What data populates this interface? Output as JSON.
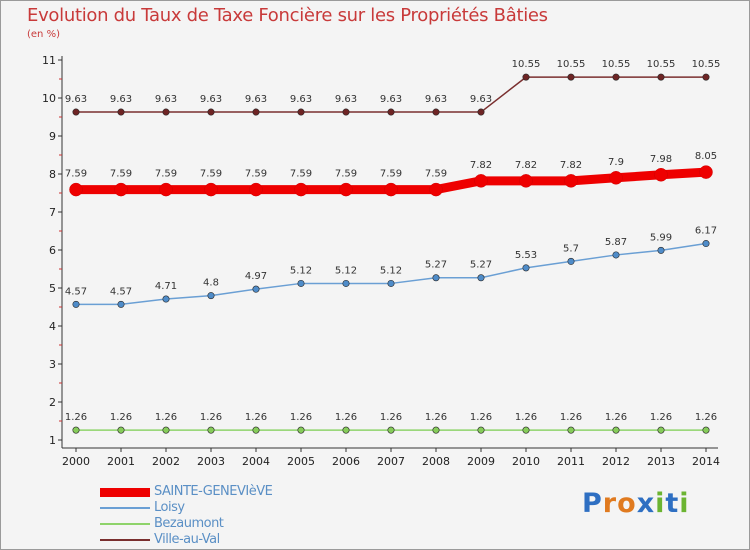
{
  "header": {
    "title": "Evolution du Taux de Taxe Foncière sur les Propriétés Bâties",
    "unit": "(en %)"
  },
  "brand": {
    "name": "Proxiti",
    "letters": [
      "P",
      "r",
      "o",
      "x",
      "i",
      "t",
      "i"
    ],
    "letter_colors": [
      "#2e6fc2",
      "#e07a1f",
      "#e07a1f",
      "#2e6fc2",
      "#6bb431",
      "#2e6fc2",
      "#6bb431"
    ]
  },
  "chart_data": {
    "type": "line",
    "title": "Evolution du Taux de Taxe Foncière sur les Propriétés Bâties",
    "ylabel": "(en %)",
    "xlabel": "",
    "ylim": [
      1,
      11
    ],
    "yticks": [
      1,
      2,
      3,
      4,
      5,
      6,
      7,
      8,
      9,
      10,
      11
    ],
    "grid": false,
    "legend_position": "bottom-left",
    "categories": [
      "2000",
      "2001",
      "2002",
      "2003",
      "2004",
      "2005",
      "2006",
      "2007",
      "2008",
      "2009",
      "2010",
      "2011",
      "2012",
      "2013",
      "2014"
    ],
    "series": [
      {
        "name": "SAINTE-GENEVIèVE",
        "color": "#ee0000",
        "style": "thick",
        "values": [
          7.59,
          7.59,
          7.59,
          7.59,
          7.59,
          7.59,
          7.59,
          7.59,
          7.59,
          7.82,
          7.82,
          7.82,
          7.9,
          7.98,
          8.05
        ],
        "labels": [
          "7.59",
          "7.59",
          "7.59",
          "7.59",
          "7.59",
          "7.59",
          "7.59",
          "7.59",
          "7.59",
          "7.82",
          "7.82",
          "7.82",
          "7.9",
          "7.98",
          "8.05"
        ]
      },
      {
        "name": "Loisy",
        "color": "#6a9fd4",
        "marker_color": "#4f8cc9",
        "style": "thin",
        "values": [
          4.57,
          4.57,
          4.71,
          4.8,
          4.97,
          5.12,
          5.12,
          5.12,
          5.27,
          5.27,
          5.53,
          5.7,
          5.87,
          5.99,
          6.17
        ],
        "labels": [
          "4.57",
          "4.57",
          "4.71",
          "4.8",
          "4.97",
          "5.12",
          "5.12",
          "5.12",
          "5.27",
          "5.27",
          "5.53",
          "5.7",
          "5.87",
          "5.99",
          "6.17"
        ]
      },
      {
        "name": "Bezaumont",
        "color": "#8ed36a",
        "marker_color": "#86cc5a",
        "style": "thin",
        "values": [
          1.26,
          1.26,
          1.26,
          1.26,
          1.26,
          1.26,
          1.26,
          1.26,
          1.26,
          1.26,
          1.26,
          1.26,
          1.26,
          1.26,
          1.26
        ],
        "labels": [
          "1.26",
          "1.26",
          "1.26",
          "1.26",
          "1.26",
          "1.26",
          "1.26",
          "1.26",
          "1.26",
          "1.26",
          "1.26",
          "1.26",
          "1.26",
          "1.26",
          "1.26"
        ]
      },
      {
        "name": "Ville-au-Val",
        "color": "#7a2f2f",
        "marker_color": "#6e2424",
        "style": "thin",
        "values": [
          9.63,
          9.63,
          9.63,
          9.63,
          9.63,
          9.63,
          9.63,
          9.63,
          9.63,
          9.63,
          10.55,
          10.55,
          10.55,
          10.55,
          10.55
        ],
        "labels": [
          "9.63",
          "9.63",
          "9.63",
          "9.63",
          "9.63",
          "9.63",
          "9.63",
          "9.63",
          "9.63",
          "9.63",
          "10.55",
          "10.55",
          "10.55",
          "10.55",
          "10.55"
        ]
      }
    ]
  }
}
